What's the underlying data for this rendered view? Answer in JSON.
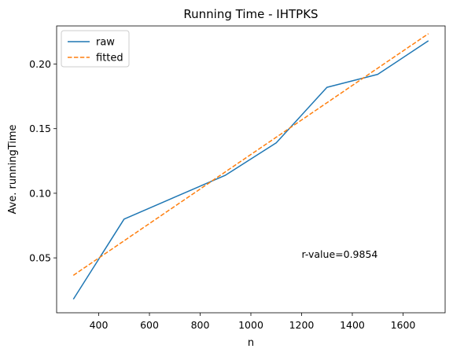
{
  "chart_data": {
    "type": "line",
    "title": "Running Time - IHTPKS",
    "xlabel": "n",
    "ylabel": "Ave. runningTime",
    "xlim": [
      234,
      1766
    ],
    "ylim": [
      0.0075,
      0.2295
    ],
    "x_ticks": [
      400,
      600,
      800,
      1000,
      1200,
      1400,
      1600
    ],
    "y_ticks": [
      0.05,
      0.1,
      0.15,
      0.2
    ],
    "y_tick_labels": [
      "0.05",
      "0.10",
      "0.15",
      "0.20"
    ],
    "grid": false,
    "legend_position": "top-left",
    "series": [
      {
        "name": "raw",
        "style": "solid",
        "color": "#1f77b4",
        "x": [
          300,
          500,
          700,
          900,
          1100,
          1300,
          1500,
          1700
        ],
        "y": [
          0.018,
          0.08,
          0.097,
          0.114,
          0.139,
          0.182,
          0.192,
          0.218
        ]
      },
      {
        "name": "fitted",
        "style": "dashed",
        "color": "#ff7f0e",
        "x": [
          300,
          1700
        ],
        "y": [
          0.0365,
          0.2235
        ]
      }
    ],
    "annotation": {
      "text": "r-value=0.9854",
      "x": 1200,
      "y": 0.05
    }
  }
}
